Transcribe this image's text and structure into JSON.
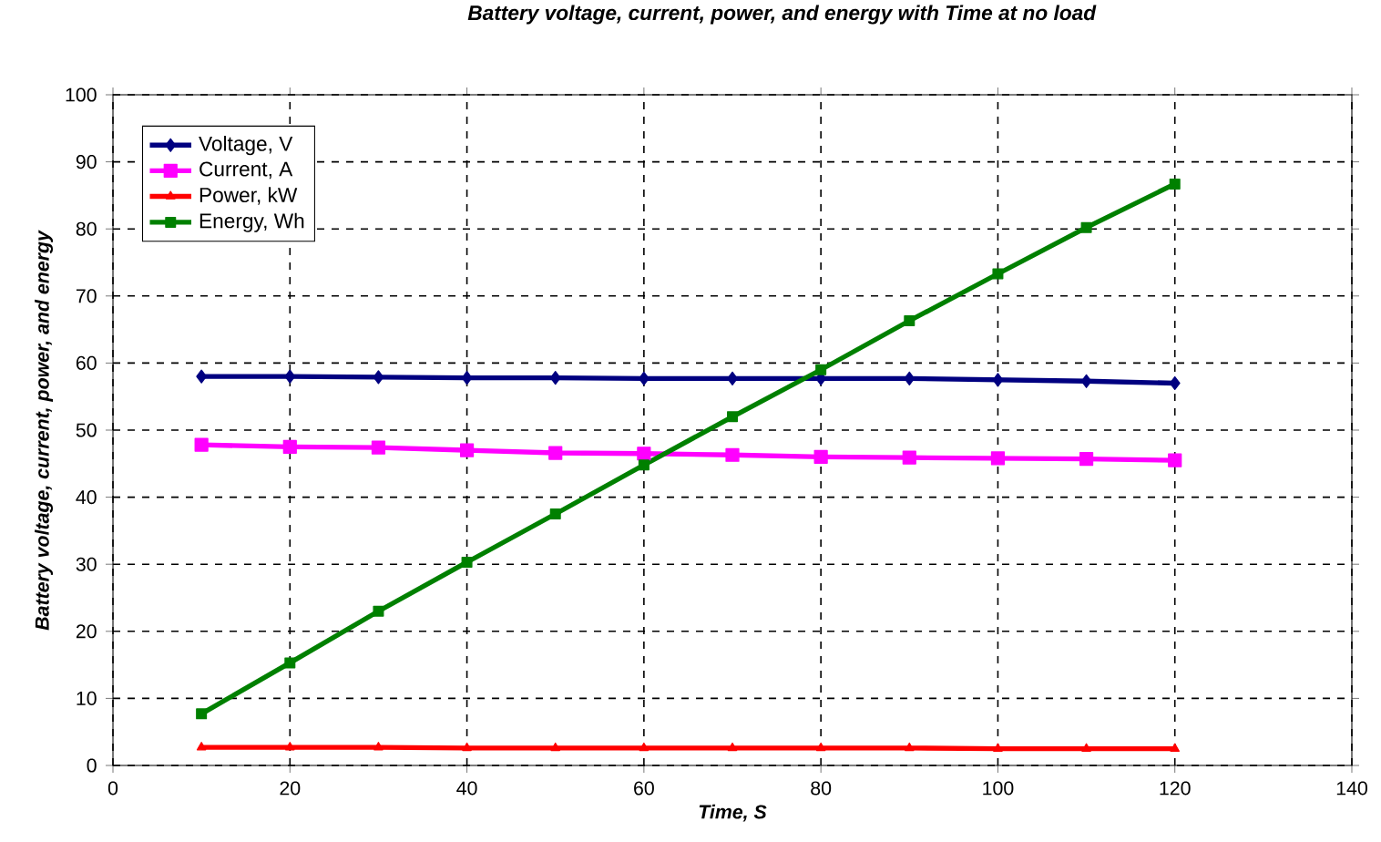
{
  "chart_data": {
    "type": "line",
    "title": "*Battery voltage, current, power, and energy with Time at no load*",
    "xlabel": "*Time, S*",
    "ylabel": "*Battery voltage, current, power, and energy*",
    "x": [
      10,
      20,
      30,
      40,
      50,
      60,
      70,
      80,
      90,
      100,
      110,
      120
    ],
    "series": [
      {
        "name": "Voltage, V",
        "color": "#000080",
        "marker": "diamond",
        "values": [
          58.0,
          58.0,
          57.9,
          57.8,
          57.8,
          57.7,
          57.7,
          57.7,
          57.7,
          57.5,
          57.3,
          57.0
        ]
      },
      {
        "name": "Current, A",
        "color": "#ff00ff",
        "marker": "square",
        "values": [
          47.8,
          47.5,
          47.4,
          47.0,
          46.6,
          46.5,
          46.3,
          46.0,
          45.9,
          45.8,
          45.7,
          45.5
        ]
      },
      {
        "name": "Power, kW",
        "color": "#ff0000",
        "marker": "triangle",
        "values": [
          2.7,
          2.7,
          2.7,
          2.6,
          2.6,
          2.6,
          2.6,
          2.6,
          2.6,
          2.5,
          2.5,
          2.5
        ]
      },
      {
        "name": "Energy, Wh",
        "color": "#008000",
        "marker": "square",
        "values": [
          7.7,
          15.3,
          23.0,
          30.3,
          37.5,
          44.8,
          52.0,
          59.0,
          66.3,
          73.3,
          80.2,
          86.7
        ]
      }
    ],
    "xlim": [
      0,
      140
    ],
    "xticks": [
      0,
      20,
      40,
      60,
      80,
      100,
      120,
      140
    ],
    "ylim": [
      0,
      100
    ],
    "yticks": [
      0,
      10,
      20,
      30,
      40,
      50,
      60,
      70,
      80,
      90,
      100
    ],
    "grid": true,
    "legend": "top left",
    "line_style": "solid"
  }
}
